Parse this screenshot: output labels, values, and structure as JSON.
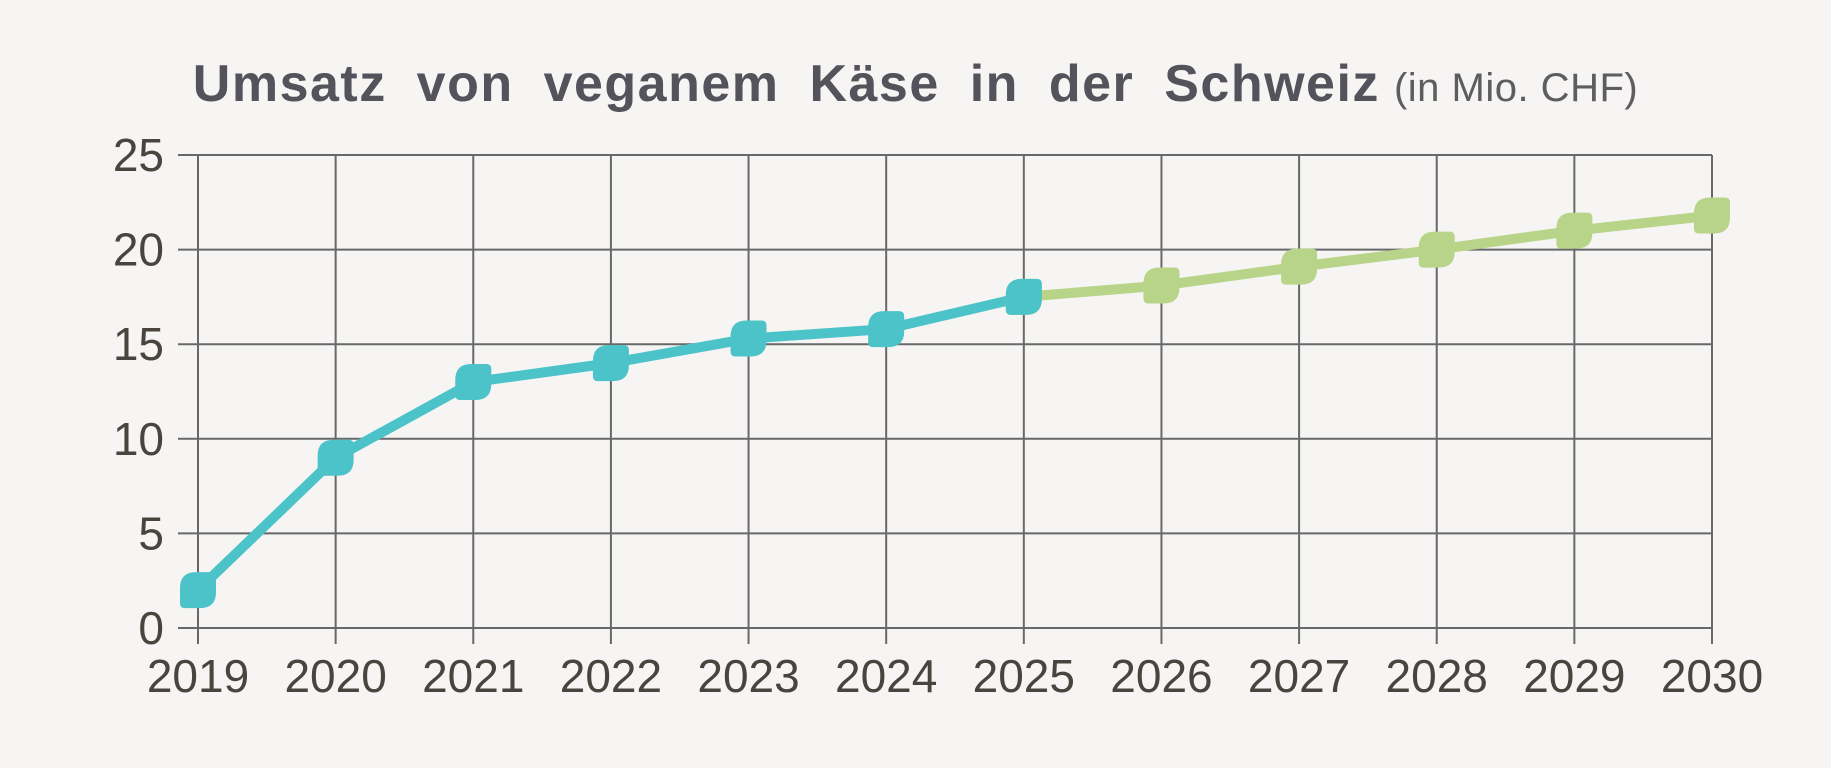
{
  "page": {
    "background": "#f6f5f4"
  },
  "header": {
    "title": "Umsatz von veganem Käse in der Schweiz",
    "unit_suffix": "(in Mio. CHF)"
  },
  "chart_data": {
    "type": "line",
    "title": "Umsatz von veganem Käse in der Schweiz",
    "subtitle": "(in Mio. CHF)",
    "xlabel": "",
    "ylabel": "",
    "x_years": [
      2019,
      2020,
      2021,
      2022,
      2023,
      2024,
      2025,
      2026,
      2027,
      2028,
      2029,
      2030
    ],
    "ylim": [
      0,
      25
    ],
    "yticks": [
      0,
      5,
      10,
      15,
      20,
      25
    ],
    "grid": true,
    "legend": "none",
    "series": [
      {
        "name": "teal",
        "color": "#4cc3c8",
        "years": [
          2019,
          2020,
          2021,
          2022,
          2023,
          2024,
          2025
        ],
        "values": [
          2,
          9,
          13,
          14,
          15.3,
          15.8,
          17.5
        ]
      },
      {
        "name": "green",
        "color": "#b8d488",
        "years": [
          2025,
          2026,
          2027,
          2028,
          2029,
          2030
        ],
        "values": [
          17.5,
          18.1,
          19.1,
          20,
          21,
          21.8
        ]
      }
    ],
    "colors": {
      "grid": "#686868",
      "axis_text": "#4a443f",
      "title_text": "#54525a",
      "subtitle_text": "#5d5c5e",
      "background": "#f6f5f4"
    }
  }
}
